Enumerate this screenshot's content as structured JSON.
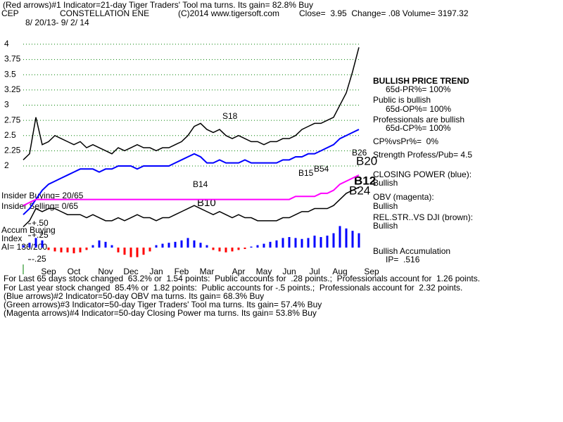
{
  "chart_data": {
    "type": "line",
    "indicator_note": "(Red arrows)#1 Indicator=21-day Tiger Traders' Tool ma turns. Its gain= 82.8% Buy",
    "symbol": "CEP",
    "title": "CONSTELLATION ENE",
    "source": "(C)2014 www.tigersoft.com",
    "quote": "Close=  3.95  Change= .08 Volume= 3197.32",
    "date_range": "8/ 20/13- 9/ 2/ 14",
    "panel_notes": [
      "BULLISH PRICE TREND",
      "65d-PR%= 100%",
      "Public is bullish",
      "65d-OP%= 100%",
      "Professionals are bullish",
      "65d-CP%= 100%",
      "CP%vsPr%=  0%",
      "Strength Profess/Pub= 4.5",
      "CLOSING POWER (blue):",
      "Bullish",
      "OBV (magenta):",
      "Bullish",
      "REL.STR..VS DJI (brown):",
      "Bullish",
      "Bullish Accumulation",
      "IP=  .516"
    ],
    "left_notes": [
      "Insider Buying= 20/65",
      "Insider Selling= 0/65",
      "Accum Buying",
      "Index",
      "AI= 136/200"
    ],
    "signals": [
      "S18",
      "B10",
      "B14",
      "B15",
      "B54",
      "B12",
      "B20",
      "B24",
      "B26"
    ],
    "footer": [
      "For Last 65 days stock changed  63.2% or  1.54 points:  Public accounts for  .28 points.;  Professionals account for  1.26 points.",
      "For Last year stock changed  85.4% or  1.82 points:  Public accounts for -.5 points.;  Professionals account for  2.32 points.",
      "(Blue arrows)#2 Indicator=50-day OBV ma turns. Its gain= 68.3% Buy",
      "(Green arrows)#3 Indicator=50-day Tiger Traders' Tool ma turns. Its gain= 57.4% Buy",
      "(Magenta arrows)#4 Indicator=50-day Closing Power ma turns. Its gain= 53.8% Buy"
    ],
    "categories": [
      null,
      null,
      null,
      null,
      "Sep",
      null,
      null,
      null,
      "Oct",
      null,
      null,
      null,
      null,
      "Nov",
      null,
      null,
      null,
      "Dec",
      null,
      null,
      null,
      "Jan",
      null,
      null,
      null,
      "Feb",
      null,
      null,
      null,
      "Mar",
      null,
      null,
      null,
      null,
      "Apr",
      null,
      null,
      null,
      "May",
      null,
      null,
      null,
      "Jun",
      null,
      null,
      null,
      "Jul",
      null,
      null,
      null,
      "Aug",
      null,
      null,
      null,
      null,
      "Sep"
    ],
    "ylim": [
      1.0,
      4.45
    ],
    "yticks": [
      2,
      2.25,
      2.5,
      2.75,
      3,
      3.25,
      3.5,
      3.75,
      4
    ],
    "grid": true,
    "grid_color": "#008000",
    "y2lim": [
      -0.3,
      0.55
    ],
    "y2ticks": [
      {
        "value": 0.5,
        "label": "+.50"
      },
      {
        "value": 0.25,
        "label": "+.25"
      },
      {
        "value": -0.25,
        "label": "-.25"
      }
    ],
    "series": [
      {
        "color": "#000000",
        "values": [
          2.1,
          2.2,
          2.8,
          2.35,
          2.4,
          2.5,
          2.45,
          2.4,
          2.35,
          2.4,
          2.3,
          2.35,
          2.3,
          2.25,
          2.2,
          2.3,
          2.25,
          2.3,
          2.35,
          2.3,
          2.3,
          2.25,
          2.3,
          2.3,
          2.35,
          2.4,
          2.5,
          2.65,
          2.7,
          2.6,
          2.55,
          2.6,
          2.5,
          2.45,
          2.5,
          2.45,
          2.4,
          2.4,
          2.35,
          2.4,
          2.4,
          2.45,
          2.45,
          2.5,
          2.6,
          2.65,
          2.7,
          2.7,
          2.75,
          2.8,
          3.0,
          3.2,
          3.55,
          3.95,
          null,
          null
        ]
      },
      {
        "color": "#0000ff",
        "values": [
          1.2,
          1.3,
          1.45,
          1.6,
          1.7,
          1.75,
          1.8,
          1.85,
          1.9,
          1.95,
          1.95,
          1.95,
          1.9,
          1.95,
          1.95,
          2.0,
          2.0,
          2.0,
          1.95,
          2.0,
          2.0,
          2.0,
          2.0,
          2.0,
          2.05,
          2.1,
          2.15,
          2.2,
          2.15,
          2.05,
          2.05,
          2.1,
          2.05,
          2.05,
          2.05,
          2.1,
          2.05,
          2.05,
          2.05,
          2.05,
          2.05,
          2.1,
          2.1,
          2.15,
          2.15,
          2.2,
          2.2,
          2.25,
          2.3,
          2.35,
          2.45,
          2.5,
          2.55,
          2.6,
          null,
          null
        ]
      },
      {
        "color": "#ff00ff",
        "values": [
          1.35,
          1.4,
          1.45,
          1.45,
          1.45,
          1.45,
          1.45,
          1.45,
          1.45,
          1.45,
          1.45,
          1.45,
          1.45,
          1.45,
          1.45,
          1.45,
          1.45,
          1.45,
          1.45,
          1.45,
          1.45,
          1.45,
          1.45,
          1.45,
          1.45,
          1.45,
          1.45,
          1.45,
          1.45,
          1.45,
          1.45,
          1.45,
          1.45,
          1.45,
          1.45,
          1.45,
          1.45,
          1.45,
          1.45,
          1.45,
          1.45,
          1.45,
          1.45,
          1.5,
          1.5,
          1.5,
          1.5,
          1.55,
          1.55,
          1.6,
          1.7,
          1.75,
          1.8,
          1.85,
          null,
          null
        ]
      },
      {
        "color": "#000000",
        "values": [
          1.0,
          1.1,
          1.3,
          1.25,
          1.3,
          1.3,
          1.25,
          1.2,
          1.2,
          1.2,
          1.15,
          1.2,
          1.15,
          1.1,
          1.1,
          1.15,
          1.1,
          1.15,
          1.2,
          1.15,
          1.15,
          1.1,
          1.15,
          1.15,
          1.2,
          1.25,
          1.3,
          1.35,
          1.3,
          1.25,
          1.2,
          1.25,
          1.2,
          1.15,
          1.2,
          1.15,
          1.15,
          1.1,
          1.1,
          1.1,
          1.1,
          1.15,
          1.15,
          1.2,
          1.25,
          1.25,
          1.3,
          1.3,
          1.3,
          1.35,
          1.45,
          1.55,
          1.6,
          1.65,
          null,
          null
        ]
      },
      {
        "axis": "y2",
        "type": "bar",
        "color_positive": "#0000ff",
        "color_negative": "#ff0000",
        "values": [
          0.05,
          0.1,
          0.2,
          0.15,
          -0.05,
          -0.08,
          -0.1,
          -0.1,
          -0.12,
          -0.1,
          -0.05,
          0.05,
          0.15,
          0.12,
          0.05,
          -0.1,
          -0.15,
          -0.2,
          -0.2,
          -0.15,
          -0.08,
          0.05,
          0.08,
          0.1,
          0.12,
          0.15,
          0.2,
          0.15,
          0.1,
          0.05,
          -0.05,
          -0.08,
          -0.1,
          -0.08,
          -0.05,
          -0.03,
          0.02,
          0.05,
          0.08,
          0.12,
          0.15,
          0.2,
          0.22,
          0.2,
          0.18,
          0.2,
          0.25,
          0.22,
          0.25,
          0.3,
          0.45,
          0.4,
          0.35,
          0.3,
          null,
          null
        ]
      }
    ]
  }
}
